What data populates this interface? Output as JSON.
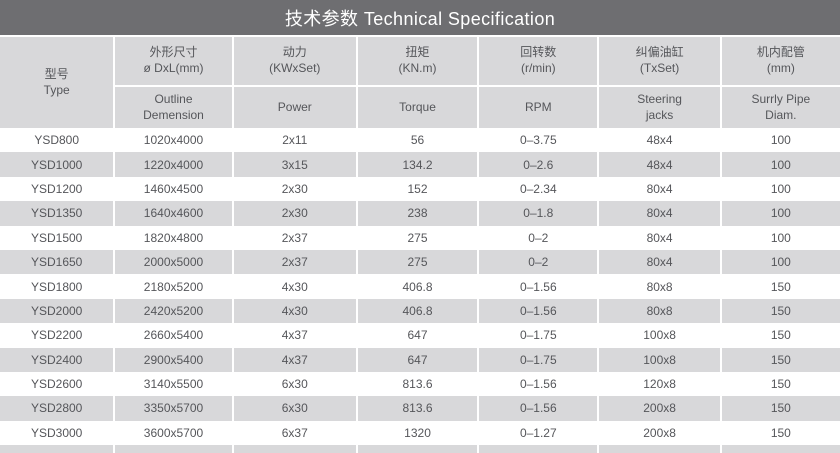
{
  "title": "技术参数 Technical Specification",
  "colors": {
    "title_bar": "#6e6e71",
    "cell_gray": "#d8d8da",
    "row_white": "#ffffff",
    "text": "#55565a",
    "title_text": "#ffffff"
  },
  "table": {
    "columns": [
      {
        "cn": "型号\nType",
        "en": ""
      },
      {
        "cn": "外形尺寸\nø DxL(mm)",
        "en": "Outline\nDemension"
      },
      {
        "cn": "动力\n(KWxSet)",
        "en": "Power"
      },
      {
        "cn": "扭矩\n(KN.m)",
        "en": "Torque"
      },
      {
        "cn": "回转数\n(r/min)",
        "en": "RPM"
      },
      {
        "cn": "纠偏油缸\n(TxSet)",
        "en": "Steering\njacks"
      },
      {
        "cn": "机内配管\n(mm)",
        "en": "Surrly Pipe\nDiam."
      }
    ],
    "rows": [
      [
        "YSD800",
        "1020x4000",
        "2x11",
        "56",
        "0–3.75",
        "48x4",
        "100"
      ],
      [
        "YSD1000",
        "1220x4000",
        "3x15",
        "134.2",
        "0–2.6",
        "48x4",
        "100"
      ],
      [
        "YSD1200",
        "1460x4500",
        "2x30",
        "152",
        "0–2.34",
        "80x4",
        "100"
      ],
      [
        "YSD1350",
        "1640x4600",
        "2x30",
        "238",
        "0–1.8",
        "80x4",
        "100"
      ],
      [
        "YSD1500",
        "1820x4800",
        "2x37",
        "275",
        "0–2",
        "80x4",
        "100"
      ],
      [
        "YSD1650",
        "2000x5000",
        "2x37",
        "275",
        "0–2",
        "80x4",
        "100"
      ],
      [
        "YSD1800",
        "2180x5200",
        "4x30",
        "406.8",
        "0–1.56",
        "80x8",
        "150"
      ],
      [
        "YSD2000",
        "2420x5200",
        "4x30",
        "406.8",
        "0–1.56",
        "80x8",
        "150"
      ],
      [
        "YSD2200",
        "2660x5400",
        "4x37",
        "647",
        "0–1.75",
        "100x8",
        "150"
      ],
      [
        "YSD2400",
        "2900x5400",
        "4x37",
        "647",
        "0–1.75",
        "100x8",
        "150"
      ],
      [
        "YSD2600",
        "3140x5500",
        "6x30",
        "813.6",
        "0–1.56",
        "120x8",
        "150"
      ],
      [
        "YSD2800",
        "3350x5700",
        "6x30",
        "813.6",
        "0–1.56",
        "200x8",
        "150"
      ],
      [
        "YSD3000",
        "3600x5700",
        "6x37",
        "1320",
        "0–1.27",
        "200x8",
        "150"
      ]
    ]
  }
}
